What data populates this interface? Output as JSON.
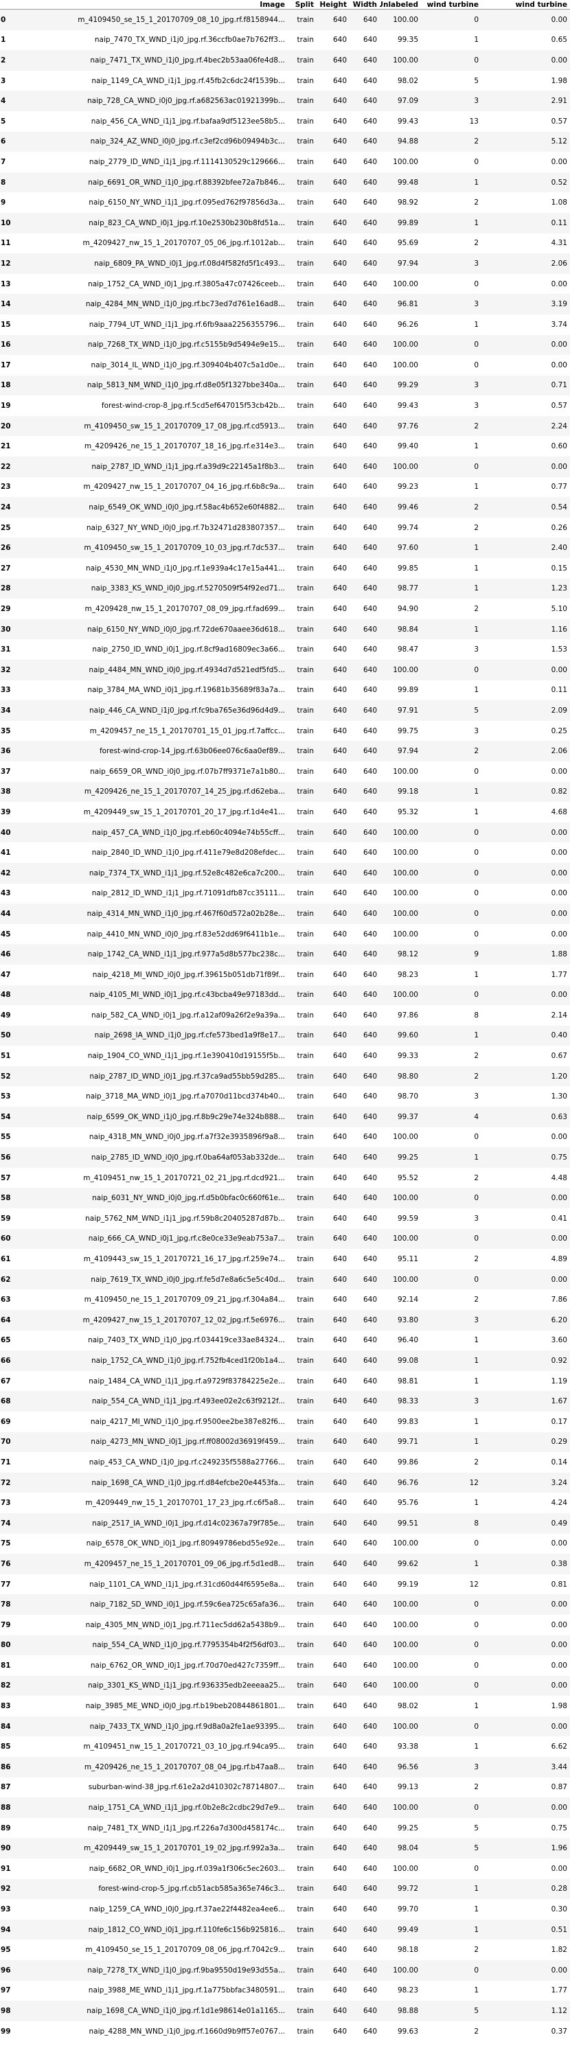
{
  "columns": [
    "",
    "Image",
    "Split",
    "Height",
    "Width",
    "Unlabeled",
    "wind turbine",
    "wind turbine"
  ],
  "rows": [
    [
      "0",
      "m_4109450_se_15_1_20170709_08_10_jpg.rf.f8158944...",
      "train",
      "640",
      "640",
      "100.00",
      "0",
      "0.00"
    ],
    [
      "1",
      "naip_7470_TX_WND_i1j0_jpg.rf.36ccfb0ae7b762ff3...",
      "train",
      "640",
      "640",
      "99.35",
      "1",
      "0.65"
    ],
    [
      "2",
      "naip_7471_TX_WND_i1j0_jpg.rf.4bec2b53aa06fe4d8...",
      "train",
      "640",
      "640",
      "100.00",
      "0",
      "0.00"
    ],
    [
      "3",
      "naip_1149_CA_WND_i1j1_jpg.rf.45fb2c6dc24f1539b...",
      "train",
      "640",
      "640",
      "98.02",
      "5",
      "1.98"
    ],
    [
      "4",
      "naip_728_CA_WND_i0j0_jpg.rf.a682563ac01921399b...",
      "train",
      "640",
      "640",
      "97.09",
      "3",
      "2.91"
    ],
    [
      "5",
      "naip_456_CA_WND_i1j1_jpg.rf.bafaa9df5123ee58b5...",
      "train",
      "640",
      "640",
      "99.43",
      "13",
      "0.57"
    ],
    [
      "6",
      "naip_324_AZ_WND_i0j0_jpg.rf.c3ef2cd96b09494b3c...",
      "train",
      "640",
      "640",
      "94.88",
      "2",
      "5.12"
    ],
    [
      "7",
      "naip_2779_ID_WND_i1j1_jpg.rf.1114130529c129666...",
      "train",
      "640",
      "640",
      "100.00",
      "0",
      "0.00"
    ],
    [
      "8",
      "naip_6691_OR_WND_i1j0_jpg.rf.88392bfee72a7b846...",
      "train",
      "640",
      "640",
      "99.48",
      "1",
      "0.52"
    ],
    [
      "9",
      "naip_6150_NY_WND_i1j1_jpg.rf.095ed762f97856d3a...",
      "train",
      "640",
      "640",
      "98.92",
      "2",
      "1.08"
    ],
    [
      "10",
      "naip_823_CA_WND_i0j1_jpg.rf.10e2530b230b8fd51a...",
      "train",
      "640",
      "640",
      "99.89",
      "1",
      "0.11"
    ],
    [
      "11",
      "m_4209427_nw_15_1_20170707_05_06_jpg.rf.1012ab...",
      "train",
      "640",
      "640",
      "95.69",
      "2",
      "4.31"
    ],
    [
      "12",
      "naip_6809_PA_WND_i0j1_jpg.rf.08d4f582fd5f1c493...",
      "train",
      "640",
      "640",
      "97.94",
      "3",
      "2.06"
    ],
    [
      "13",
      "naip_1752_CA_WND_i0j1_jpg.rf.3805a47c07426ceeb...",
      "train",
      "640",
      "640",
      "100.00",
      "0",
      "0.00"
    ],
    [
      "14",
      "naip_4284_MN_WND_i1j0_jpg.rf.bc73ed7d761e16ad8...",
      "train",
      "640",
      "640",
      "96.81",
      "3",
      "3.19"
    ],
    [
      "15",
      "naip_7794_UT_WND_i1j1_jpg.rf.6fb9aaa2256355796...",
      "train",
      "640",
      "640",
      "96.26",
      "1",
      "3.74"
    ],
    [
      "16",
      "naip_7268_TX_WND_i1j0_jpg.rf.c5155b9d5494e9e15...",
      "train",
      "640",
      "640",
      "100.00",
      "0",
      "0.00"
    ],
    [
      "17",
      "naip_3014_IL_WND_i1j0_jpg.rf.309404b407c5a1d0e...",
      "train",
      "640",
      "640",
      "100.00",
      "0",
      "0.00"
    ],
    [
      "18",
      "naip_5813_NM_WND_i1j0_jpg.rf.d8e05f1327bbe340a...",
      "train",
      "640",
      "640",
      "99.29",
      "3",
      "0.71"
    ],
    [
      "19",
      "forest-wind-crop-8_jpg.rf.5cd5ef647015f53cb42b...",
      "train",
      "640",
      "640",
      "99.43",
      "3",
      "0.57"
    ],
    [
      "20",
      "m_4109450_sw_15_1_20170709_17_08_jpg.rf.cd5913...",
      "train",
      "640",
      "640",
      "97.76",
      "2",
      "2.24"
    ],
    [
      "21",
      "m_4209426_ne_15_1_20170707_18_16_jpg.rf.e314e3...",
      "train",
      "640",
      "640",
      "99.40",
      "1",
      "0.60"
    ],
    [
      "22",
      "naip_2787_ID_WND_i1j1_jpg.rf.a39d9c22145a1f8b3...",
      "train",
      "640",
      "640",
      "100.00",
      "0",
      "0.00"
    ],
    [
      "23",
      "m_4209427_nw_15_1_20170707_04_16_jpg.rf.6b8c9a...",
      "train",
      "640",
      "640",
      "99.23",
      "1",
      "0.77"
    ],
    [
      "24",
      "naip_6549_OK_WND_i0j0_jpg.rf.58ac4b652e60f4882...",
      "train",
      "640",
      "640",
      "99.46",
      "2",
      "0.54"
    ],
    [
      "25",
      "naip_6327_NY_WND_i0j0_jpg.rf.7b32471d283807357...",
      "train",
      "640",
      "640",
      "99.74",
      "2",
      "0.26"
    ],
    [
      "26",
      "m_4109450_sw_15_1_20170709_10_03_jpg.rf.7dc537...",
      "train",
      "640",
      "640",
      "97.60",
      "1",
      "2.40"
    ],
    [
      "27",
      "naip_4530_MN_WND_i1j0_jpg.rf.1e939a4c17e15a441...",
      "train",
      "640",
      "640",
      "99.85",
      "1",
      "0.15"
    ],
    [
      "28",
      "naip_3383_KS_WND_i0j0_jpg.rf.5270509f54f92ed71...",
      "train",
      "640",
      "640",
      "98.77",
      "1",
      "1.23"
    ],
    [
      "29",
      "m_4209428_nw_15_1_20170707_08_09_jpg.rf.fad699...",
      "train",
      "640",
      "640",
      "94.90",
      "2",
      "5.10"
    ],
    [
      "30",
      "naip_6150_NY_WND_i0j0_jpg.rf.72de670aaee36d618...",
      "train",
      "640",
      "640",
      "98.84",
      "1",
      "1.16"
    ],
    [
      "31",
      "naip_2750_ID_WND_i0j1_jpg.rf.8cf9ad16809ec3a66...",
      "train",
      "640",
      "640",
      "98.47",
      "3",
      "1.53"
    ],
    [
      "32",
      "naip_4484_MN_WND_i0j0_jpg.rf.4934d7d521edf5fd5...",
      "train",
      "640",
      "640",
      "100.00",
      "0",
      "0.00"
    ],
    [
      "33",
      "naip_3784_MA_WND_i0j1_jpg.rf.19681b35689f83a7a...",
      "train",
      "640",
      "640",
      "99.89",
      "1",
      "0.11"
    ],
    [
      "34",
      "naip_446_CA_WND_i1j0_jpg.rf.fc9ba765e36d96d4d9...",
      "train",
      "640",
      "640",
      "97.91",
      "5",
      "2.09"
    ],
    [
      "35",
      "m_4209457_ne_15_1_20170701_15_01_jpg.rf.7affcc...",
      "train",
      "640",
      "640",
      "99.75",
      "3",
      "0.25"
    ],
    [
      "36",
      "forest-wind-crop-14_jpg.rf.63b06ee076c6aa0ef89...",
      "train",
      "640",
      "640",
      "97.94",
      "2",
      "2.06"
    ],
    [
      "37",
      "naip_6659_OR_WND_i0j0_jpg.rf.07b7ff9371e7a1b80...",
      "train",
      "640",
      "640",
      "100.00",
      "0",
      "0.00"
    ],
    [
      "38",
      "m_4209426_ne_15_1_20170707_14_25_jpg.rf.d62eba...",
      "train",
      "640",
      "640",
      "99.18",
      "1",
      "0.82"
    ],
    [
      "39",
      "m_4209449_sw_15_1_20170701_20_17_jpg.rf.1d4e41...",
      "train",
      "640",
      "640",
      "95.32",
      "1",
      "4.68"
    ],
    [
      "40",
      "naip_457_CA_WND_i1j0_jpg.rf.eb60c4094e74b55cff...",
      "train",
      "640",
      "640",
      "100.00",
      "0",
      "0.00"
    ],
    [
      "41",
      "naip_2840_ID_WND_i1j0_jpg.rf.411e79e8d208efdec...",
      "train",
      "640",
      "640",
      "100.00",
      "0",
      "0.00"
    ],
    [
      "42",
      "naip_7374_TX_WND_i1j1_jpg.rf.52e8c482e6ca7c200...",
      "train",
      "640",
      "640",
      "100.00",
      "0",
      "0.00"
    ],
    [
      "43",
      "naip_2812_ID_WND_i1j1_jpg.rf.71091dfb87cc35111...",
      "train",
      "640",
      "640",
      "100.00",
      "0",
      "0.00"
    ],
    [
      "44",
      "naip_4314_MN_WND_i1j0_jpg.rf.467f60d572a02b28e...",
      "train",
      "640",
      "640",
      "100.00",
      "0",
      "0.00"
    ],
    [
      "45",
      "naip_4410_MN_WND_i0j0_jpg.rf.83e52dd69f6411b1e...",
      "train",
      "640",
      "640",
      "100.00",
      "0",
      "0.00"
    ],
    [
      "46",
      "naip_1742_CA_WND_i1j1_jpg.rf.977a5d8b577bc238c...",
      "train",
      "640",
      "640",
      "98.12",
      "9",
      "1.88"
    ],
    [
      "47",
      "naip_4218_MI_WND_i0j0_jpg.rf.39615b051db71f89f...",
      "train",
      "640",
      "640",
      "98.23",
      "1",
      "1.77"
    ],
    [
      "48",
      "naip_4105_MI_WND_i0j1_jpg.rf.c43bcba49e97183dd...",
      "train",
      "640",
      "640",
      "100.00",
      "0",
      "0.00"
    ],
    [
      "49",
      "naip_582_CA_WND_i0j1_jpg.rf.a12af09a26f2e9a39a...",
      "train",
      "640",
      "640",
      "97.86",
      "8",
      "2.14"
    ],
    [
      "50",
      "naip_2698_IA_WND_i1j0_jpg.rf.cfe573bed1a9f8e17...",
      "train",
      "640",
      "640",
      "99.60",
      "1",
      "0.40"
    ],
    [
      "51",
      "naip_1904_CO_WND_i1j1_jpg.rf.1e390410d19155f5b...",
      "train",
      "640",
      "640",
      "99.33",
      "2",
      "0.67"
    ],
    [
      "52",
      "naip_2787_ID_WND_i0j1_jpg.rf.37ca9ad55bb59d285...",
      "train",
      "640",
      "640",
      "98.80",
      "2",
      "1.20"
    ],
    [
      "53",
      "naip_3718_MA_WND_i0j1_jpg.rf.a7070d11bcd374b40...",
      "train",
      "640",
      "640",
      "98.70",
      "3",
      "1.30"
    ],
    [
      "54",
      "naip_6599_OK_WND_i1j0_jpg.rf.8b9c29e74e324b888...",
      "train",
      "640",
      "640",
      "99.37",
      "4",
      "0.63"
    ],
    [
      "55",
      "naip_4318_MN_WND_i0j0_jpg.rf.a7f32e3935896f9a8...",
      "train",
      "640",
      "640",
      "100.00",
      "0",
      "0.00"
    ],
    [
      "56",
      "naip_2785_ID_WND_i0j0_jpg.rf.0ba64af053ab332de...",
      "train",
      "640",
      "640",
      "99.25",
      "1",
      "0.75"
    ],
    [
      "57",
      "m_4109451_nw_15_1_20170721_02_21_jpg.rf.dcd921...",
      "train",
      "640",
      "640",
      "95.52",
      "2",
      "4.48"
    ],
    [
      "58",
      "naip_6031_NY_WND_i0j0_jpg.rf.d5b0bfac0c660f61e...",
      "train",
      "640",
      "640",
      "100.00",
      "0",
      "0.00"
    ],
    [
      "59",
      "naip_5762_NM_WND_i1j1_jpg.rf.59b8c20405287d87b...",
      "train",
      "640",
      "640",
      "99.59",
      "3",
      "0.41"
    ],
    [
      "60",
      "naip_666_CA_WND_i0j1_jpg.rf.c8e0ce33e9eab753a7...",
      "train",
      "640",
      "640",
      "100.00",
      "0",
      "0.00"
    ],
    [
      "61",
      "m_4109443_sw_15_1_20170721_16_17_jpg.rf.259e74...",
      "train",
      "640",
      "640",
      "95.11",
      "2",
      "4.89"
    ],
    [
      "62",
      "naip_7619_TX_WND_i0j0_jpg.rf.fe5d7e8a6c5e5c40d...",
      "train",
      "640",
      "640",
      "100.00",
      "0",
      "0.00"
    ],
    [
      "63",
      "m_4109450_ne_15_1_20170709_09_21_jpg.rf.304a84...",
      "train",
      "640",
      "640",
      "92.14",
      "2",
      "7.86"
    ],
    [
      "64",
      "m_4209427_nw_15_1_20170707_12_02_jpg.rf.5e6976...",
      "train",
      "640",
      "640",
      "93.80",
      "3",
      "6.20"
    ],
    [
      "65",
      "naip_7403_TX_WND_i1j0_jpg.rf.034419ce33ae84324...",
      "train",
      "640",
      "640",
      "96.40",
      "1",
      "3.60"
    ],
    [
      "66",
      "naip_1752_CA_WND_i1j0_jpg.rf.752fb4ced1f20b1a4...",
      "train",
      "640",
      "640",
      "99.08",
      "1",
      "0.92"
    ],
    [
      "67",
      "naip_1484_CA_WND_i1j1_jpg.rf.a9729f83784225e2e...",
      "train",
      "640",
      "640",
      "98.81",
      "1",
      "1.19"
    ],
    [
      "68",
      "naip_554_CA_WND_i1j1_jpg.rf.493ee02e2c63f9212f...",
      "train",
      "640",
      "640",
      "98.33",
      "3",
      "1.67"
    ],
    [
      "69",
      "naip_4217_MI_WND_i1j0_jpg.rf.9500ee2be387e82f6...",
      "train",
      "640",
      "640",
      "99.83",
      "1",
      "0.17"
    ],
    [
      "70",
      "naip_4273_MN_WND_i0j1_jpg.rf.ff08002d36919f459...",
      "train",
      "640",
      "640",
      "99.71",
      "1",
      "0.29"
    ],
    [
      "71",
      "naip_453_CA_WND_i1j0_jpg.rf.c249235f5588a27766...",
      "train",
      "640",
      "640",
      "99.86",
      "2",
      "0.14"
    ],
    [
      "72",
      "naip_1698_CA_WND_i1j0_jpg.rf.d84efcbe20e4453fa...",
      "train",
      "640",
      "640",
      "96.76",
      "12",
      "3.24"
    ],
    [
      "73",
      "m_4209449_nw_15_1_20170701_17_23_jpg.rf.c6f5a8...",
      "train",
      "640",
      "640",
      "95.76",
      "1",
      "4.24"
    ],
    [
      "74",
      "naip_2517_IA_WND_i0j1_jpg.rf.d14c02367a79f785e...",
      "train",
      "640",
      "640",
      "99.51",
      "8",
      "0.49"
    ],
    [
      "75",
      "naip_6578_OK_WND_i0j1_jpg.rf.80949786ebd55e92e...",
      "train",
      "640",
      "640",
      "100.00",
      "0",
      "0.00"
    ],
    [
      "76",
      "m_4209457_ne_15_1_20170701_09_06_jpg.rf.5d1ed8...",
      "train",
      "640",
      "640",
      "99.62",
      "1",
      "0.38"
    ],
    [
      "77",
      "naip_1101_CA_WND_i1j1_jpg.rf.31cd60d44f6595e8a...",
      "train",
      "640",
      "640",
      "99.19",
      "12",
      "0.81"
    ],
    [
      "78",
      "naip_7182_SD_WND_i0j1_jpg.rf.59c6ea725c65afa36...",
      "train",
      "640",
      "640",
      "100.00",
      "0",
      "0.00"
    ],
    [
      "79",
      "naip_4305_MN_WND_i0j1_jpg.rf.711ec5dd62a5438b9...",
      "train",
      "640",
      "640",
      "100.00",
      "0",
      "0.00"
    ],
    [
      "80",
      "naip_554_CA_WND_i1j0_jpg.rf.7795354b4f2f56df03...",
      "train",
      "640",
      "640",
      "100.00",
      "0",
      "0.00"
    ],
    [
      "81",
      "naip_6762_OR_WND_i0j1_jpg.rf.70d70ed427c7359ff...",
      "train",
      "640",
      "640",
      "100.00",
      "0",
      "0.00"
    ],
    [
      "82",
      "naip_3301_KS_WND_i1j1_jpg.rf.936335edb2eeeaa25...",
      "train",
      "640",
      "640",
      "100.00",
      "0",
      "0.00"
    ],
    [
      "83",
      "naip_3985_ME_WND_i0j0_jpg.rf.b19beb20844861801...",
      "train",
      "640",
      "640",
      "98.02",
      "1",
      "1.98"
    ],
    [
      "84",
      "naip_7433_TX_WND_i1j0_jpg.rf.9d8a0a2fe1ae93395...",
      "train",
      "640",
      "640",
      "100.00",
      "0",
      "0.00"
    ],
    [
      "85",
      "m_4109451_nw_15_1_20170721_03_10_jpg.rf.94ca95...",
      "train",
      "640",
      "640",
      "93.38",
      "1",
      "6.62"
    ],
    [
      "86",
      "m_4209426_ne_15_1_20170707_08_04_jpg.rf.b47aa8...",
      "train",
      "640",
      "640",
      "96.56",
      "3",
      "3.44"
    ],
    [
      "87",
      "suburban-wind-38_jpg.rf.61e2a2d410302c78714807...",
      "train",
      "640",
      "640",
      "99.13",
      "2",
      "0.87"
    ],
    [
      "88",
      "naip_1751_CA_WND_i1j1_jpg.rf.0b2e8c2cdbc29d7e9...",
      "train",
      "640",
      "640",
      "100.00",
      "0",
      "0.00"
    ],
    [
      "89",
      "naip_7481_TX_WND_i1j1_jpg.rf.226a7d300d458174c...",
      "train",
      "640",
      "640",
      "99.25",
      "5",
      "0.75"
    ],
    [
      "90",
      "m_4209449_sw_15_1_20170701_19_02_jpg.rf.992a3a...",
      "train",
      "640",
      "640",
      "98.04",
      "5",
      "1.96"
    ],
    [
      "91",
      "naip_6682_OR_WND_i0j1_jpg.rf.039a1f306c5ec2603...",
      "train",
      "640",
      "640",
      "100.00",
      "0",
      "0.00"
    ],
    [
      "92",
      "forest-wind-crop-5_jpg.rf.cb51acb585a365e746c3...",
      "train",
      "640",
      "640",
      "99.72",
      "1",
      "0.28"
    ],
    [
      "93",
      "naip_1259_CA_WND_i0j0_jpg.rf.37ae22f4482ea4ee6...",
      "train",
      "640",
      "640",
      "99.70",
      "1",
      "0.30"
    ],
    [
      "94",
      "naip_1812_CO_WND_i0j1_jpg.rf.110fe6c156b925816...",
      "train",
      "640",
      "640",
      "99.49",
      "1",
      "0.51"
    ],
    [
      "95",
      "m_4109450_se_15_1_20170709_08_06_jpg.rf.7042c9...",
      "train",
      "640",
      "640",
      "98.18",
      "2",
      "1.82"
    ],
    [
      "96",
      "naip_7278_TX_WND_i1j0_jpg.rf.9ba9550d19e93d55a...",
      "train",
      "640",
      "640",
      "100.00",
      "0",
      "0.00"
    ],
    [
      "97",
      "naip_3988_ME_WND_i1j1_jpg.rf.1a775bbfac3480591...",
      "train",
      "640",
      "640",
      "98.23",
      "1",
      "1.77"
    ],
    [
      "98",
      "naip_1698_CA_WND_i1j0_jpg.rf.1d1e98614e01a1165...",
      "train",
      "640",
      "640",
      "98.88",
      "5",
      "1.12"
    ],
    [
      "99",
      "naip_4288_MN_WND_i1j0_jpg.rf.1660d9b9ff57e0767...",
      "train",
      "640",
      "640",
      "99.63",
      "2",
      "0.37"
    ]
  ]
}
